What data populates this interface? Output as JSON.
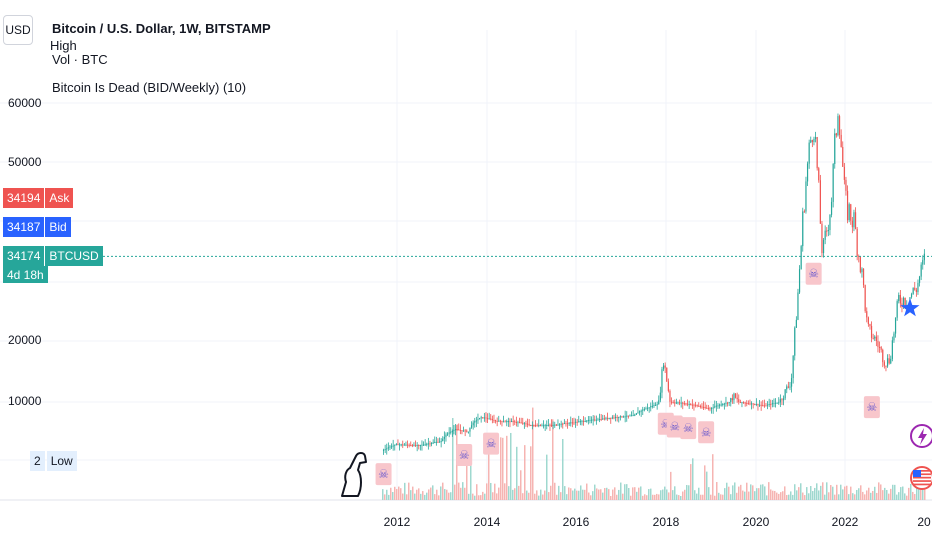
{
  "header": {
    "currency_button": "USD",
    "title": "Bitcoin / U.S. Dollar, 1W, BITSTAMP",
    "legend_high": "High",
    "legend_vol": "Vol · BTC",
    "legend_indicator": "Bitcoin Is Dead (BID/Weekly) (10)"
  },
  "price_tags": {
    "ask": {
      "value": "34194",
      "label": "Ask",
      "color": "#ef5350"
    },
    "bid": {
      "value": "34187",
      "label": "Bid",
      "color": "#2962ff"
    },
    "last": {
      "value": "34174",
      "label": "BTCUSD",
      "countdown": "4d 18h",
      "color": "#26a69a"
    },
    "low": {
      "value": "2",
      "label": "Low"
    }
  },
  "colors": {
    "up": "#26a69a",
    "down": "#ef5350",
    "volume_up": "#9fd8cf",
    "volume_down": "#f6b4b2",
    "marker": "#f8c6cb",
    "star": "#2962ff",
    "grid": "#f0f3fa"
  },
  "icons": [
    "skull-crossbones-icon",
    "dinosaur-logo-icon",
    "lightning-icon",
    "us-flag-icon",
    "star-icon"
  ],
  "chart_data": {
    "type": "candlestick",
    "y_tick_labels": [
      "60000",
      "50000",
      "20000",
      "10000"
    ],
    "x_tick_labels": [
      "2012",
      "2014",
      "2016",
      "2018",
      "2020",
      "2022",
      "20"
    ],
    "x": [
      2011.7,
      2012.0,
      2012.5,
      2013.0,
      2013.3,
      2013.6,
      2013.9,
      2014.2,
      2014.6,
      2015.0,
      2015.5,
      2016.0,
      2016.5,
      2017.0,
      2017.3,
      2017.6,
      2017.8,
      2017.95,
      2018.1,
      2018.3,
      2018.6,
      2018.9,
      2019.0,
      2019.3,
      2019.5,
      2019.8,
      2020.0,
      2020.2,
      2020.5,
      2020.8,
      2020.95,
      2021.1,
      2021.3,
      2021.5,
      2021.7,
      2021.85,
      2022.0,
      2022.2,
      2022.4,
      2022.5,
      2022.7,
      2022.9,
      2023.0,
      2023.2,
      2023.4,
      2023.6,
      2023.8
    ],
    "values": [
      5,
      12,
      10,
      20,
      130,
      90,
      900,
      500,
      450,
      250,
      260,
      420,
      650,
      1000,
      1200,
      4000,
      7000,
      17000,
      10000,
      9000,
      6500,
      3800,
      3600,
      8000,
      11000,
      8500,
      7200,
      5500,
      9500,
      13500,
      28000,
      45000,
      58000,
      34000,
      44000,
      61000,
      43000,
      40000,
      30000,
      22000,
      20000,
      16500,
      17000,
      27000,
      27000,
      29000,
      34174
    ],
    "volume_peaks": [
      {
        "x": 2013.3,
        "level": 0.9
      },
      {
        "x": 2014.0,
        "level": 0.95
      },
      {
        "x": 2014.7,
        "level": 0.7
      },
      {
        "x": 2015.0,
        "level": 0.85
      }
    ],
    "bid_markers_x": [
      2011.7,
      2013.5,
      2014.1,
      2018.0,
      2018.2,
      2018.5,
      2018.9,
      2021.3,
      2022.6
    ],
    "star_x": 2023.45
  }
}
